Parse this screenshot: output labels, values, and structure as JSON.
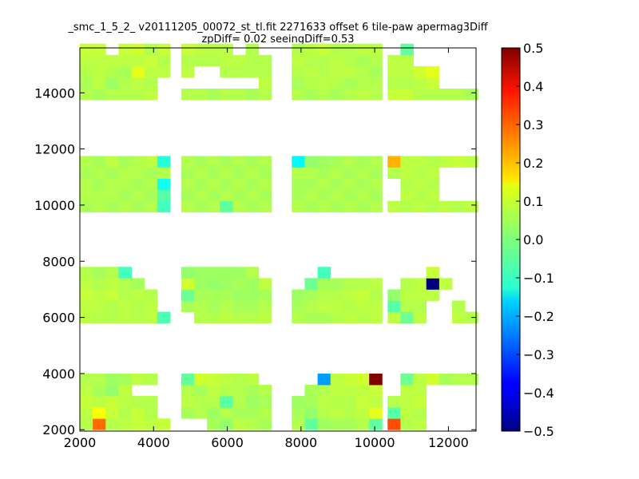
{
  "chart_data": {
    "type": "heatmap",
    "title_line1": "_smc_1_5_2_ v20111205_00072_st_tl.fit 2271633 offset 6 tile-paw apermag3Diff",
    "title_line2": "zpDiff= 0.02 seeingDiff=0.53",
    "xlim": [
      2000,
      12750
    ],
    "ylim": [
      1950,
      15600
    ],
    "grid": false,
    "colormap": "jet",
    "colorbar": {
      "range": [
        -0.5,
        0.5
      ],
      "ticks": [
        0.5,
        0.4,
        0.3,
        0.2,
        0.1,
        0.0,
        -0.1,
        -0.2,
        -0.3,
        -0.4,
        -0.5
      ],
      "tick_labels": [
        "0.5",
        "0.4",
        "0.3",
        "0.2",
        "0.1",
        "0.0",
        "−0.1",
        "−0.2",
        "−0.3",
        "−0.4",
        "−0.5"
      ]
    },
    "x_ticks": [
      2000,
      4000,
      6000,
      8000,
      10000,
      12000
    ],
    "x_tick_labels": [
      "2000",
      "4000",
      "6000",
      "8000",
      "10000",
      "12000"
    ],
    "y_ticks": [
      2000,
      4000,
      6000,
      8000,
      10000,
      12000,
      14000
    ],
    "y_tick_labels": [
      "2000",
      "4000",
      "6000",
      "8000",
      "10000",
      "12000",
      "14000"
    ],
    "cell_width": 350,
    "cell_height": 400,
    "column_x": [
      2000,
      2350,
      2700,
      3050,
      3400,
      3750,
      4100,
      4750,
      5100,
      5450,
      5800,
      6150,
      6500,
      6850,
      7750,
      8100,
      8450,
      8800,
      9150,
      9500,
      9850,
      10350,
      10700,
      11050,
      11400,
      11750,
      12100,
      12450
    ],
    "band_row_y": [
      [
        2000,
        2400,
        2800,
        3200,
        3600
      ],
      [
        5800,
        6200,
        6600,
        7000,
        7400
      ],
      [
        9750,
        10150,
        10550,
        10950,
        11350
      ],
      [
        13750,
        14150,
        14550,
        14950,
        15350
      ]
    ],
    "bands": [
      [
        [
          0.05,
          0.06,
          0.07,
          0.06,
          0.05
        ],
        [
          0.27,
          0.12,
          0.06,
          0.04,
          0.05
        ],
        [
          0.05,
          0.07,
          0.07,
          0.02,
          0.03
        ],
        [
          0.06,
          0.05,
          0.06,
          0.06,
          0.04
        ],
        [
          0.07,
          0.07,
          0.05,
          null,
          0.06
        ],
        [
          0.06,
          0.05,
          0.05,
          null,
          0.05
        ],
        [
          0.07,
          null,
          null,
          null,
          null
        ],
        [
          null,
          0.04,
          0.06,
          0.05,
          -0.03
        ],
        [
          null,
          0.05,
          0.05,
          0.04,
          0.08
        ],
        [
          0.04,
          0.03,
          0.05,
          0.06,
          0.07
        ],
        [
          0.02,
          0.05,
          -0.04,
          0.05,
          0.06
        ],
        [
          0.06,
          0.04,
          0.05,
          0.05,
          0.05
        ],
        [
          0.05,
          0.04,
          0.03,
          0.04,
          0.06
        ],
        [
          0.04,
          0.05,
          0.04,
          0.05,
          null
        ],
        [
          0.05,
          0.04,
          0.03,
          null,
          null
        ],
        [
          -0.03,
          0.02,
          0.04,
          0.04,
          null
        ],
        [
          0.03,
          0.05,
          0.06,
          0.05,
          -0.22
        ],
        [
          0.04,
          0.06,
          0.05,
          0.06,
          0.06
        ],
        [
          0.04,
          0.05,
          0.05,
          0.06,
          0.07
        ],
        [
          0.05,
          0.06,
          0.07,
          0.06,
          0.08
        ],
        [
          -0.03,
          0.1,
          0.06,
          0.07,
          0.5
        ],
        [
          0.3,
          -0.04,
          0.05,
          null,
          null
        ],
        [
          0.05,
          0.06,
          0.06,
          0.06,
          -0.02
        ],
        [
          0.06,
          0.05,
          0.07,
          0.06,
          0.06
        ],
        [
          null,
          null,
          null,
          null,
          0.08
        ],
        [
          null,
          null,
          null,
          null,
          0.04
        ],
        [
          null,
          null,
          null,
          null,
          0.05
        ],
        [
          null,
          null,
          null,
          null,
          0.05
        ]
      ],
      [
        [
          0.06,
          0.06,
          0.07,
          0.06,
          0.05
        ],
        [
          0.05,
          0.06,
          0.06,
          0.05,
          0.04
        ],
        [
          0.05,
          0.05,
          0.07,
          0.06,
          0.05
        ],
        [
          0.06,
          0.06,
          0.05,
          0.05,
          -0.06
        ],
        [
          0.05,
          0.05,
          0.06,
          0.04,
          null
        ],
        [
          0.06,
          0.06,
          0.05,
          null,
          null
        ],
        [
          -0.05,
          null,
          null,
          null,
          null
        ],
        [
          null,
          0.04,
          -0.02,
          0.08,
          0.02
        ],
        [
          0.05,
          0.05,
          0.04,
          0.03,
          0.03
        ],
        [
          0.05,
          0.04,
          0.04,
          0.02,
          0.03
        ],
        [
          0.06,
          0.05,
          0.04,
          0.03,
          0.03
        ],
        [
          0.05,
          0.04,
          0.03,
          0.04,
          0.03
        ],
        [
          0.05,
          0.04,
          0.03,
          0.03,
          0.05
        ],
        [
          0.06,
          0.05,
          0.04,
          0.06,
          null
        ],
        [
          0.05,
          0.04,
          0.03,
          null,
          null
        ],
        [
          0.04,
          0.05,
          0.04,
          -0.02,
          null
        ],
        [
          0.04,
          0.06,
          0.05,
          0.04,
          -0.06
        ],
        [
          0.05,
          0.06,
          0.05,
          0.04,
          null
        ],
        [
          0.06,
          0.05,
          0.06,
          0.05,
          null
        ],
        [
          0.05,
          0.06,
          0.07,
          0.05,
          null
        ],
        [
          0.06,
          0.06,
          0.05,
          0.06,
          null
        ],
        [
          0.06,
          -0.04,
          0.02,
          null,
          null
        ],
        [
          -0.02,
          0.05,
          0.06,
          0.05,
          null
        ],
        [
          0.06,
          0.05,
          0.06,
          0.06,
          null
        ],
        [
          null,
          null,
          0.06,
          -0.5,
          0.07
        ],
        [
          null,
          null,
          null,
          0.06,
          null
        ],
        [
          0.06,
          0.05,
          null,
          null,
          null
        ],
        [
          0.05,
          null,
          null,
          null,
          null
        ]
      ],
      [
        [
          0.04,
          0.05,
          0.05,
          0.04,
          0.05
        ],
        [
          0.05,
          0.05,
          0.04,
          0.05,
          0.04
        ],
        [
          0.04,
          0.05,
          0.05,
          0.04,
          0.06
        ],
        [
          0.05,
          0.04,
          0.05,
          0.05,
          0.04
        ],
        [
          0.04,
          0.05,
          0.04,
          0.05,
          0.05
        ],
        [
          0.05,
          0.04,
          0.05,
          0.04,
          0.06
        ],
        [
          -0.06,
          -0.04,
          -0.11,
          0.05,
          -0.09
        ],
        [
          0.05,
          0.04,
          0.05,
          0.04,
          0.05
        ],
        [
          0.04,
          0.05,
          0.04,
          0.05,
          0.04
        ],
        [
          0.05,
          0.04,
          0.05,
          0.04,
          0.05
        ],
        [
          -0.03,
          0.05,
          0.04,
          0.05,
          0.04
        ],
        [
          0.05,
          0.04,
          0.05,
          0.04,
          0.05
        ],
        [
          0.04,
          0.05,
          0.04,
          0.05,
          0.04
        ],
        [
          0.05,
          0.04,
          0.05,
          0.04,
          0.05
        ],
        [
          0.05,
          0.04,
          0.04,
          0.05,
          -0.13
        ],
        [
          0.04,
          0.05,
          0.04,
          0.05,
          0.02
        ],
        [
          0.05,
          0.04,
          0.05,
          0.04,
          0.03
        ],
        [
          0.04,
          0.05,
          0.04,
          0.05,
          0.04
        ],
        [
          0.05,
          0.04,
          0.05,
          0.04,
          0.05
        ],
        [
          0.04,
          0.05,
          0.04,
          0.05,
          0.04
        ],
        [
          0.05,
          0.04,
          0.05,
          0.04,
          0.05
        ],
        [
          0.06,
          null,
          null,
          0.05,
          0.2
        ],
        [
          0.05,
          0.06,
          0.05,
          0.06,
          0.06
        ],
        [
          0.06,
          0.05,
          0.06,
          0.05,
          0.06
        ],
        [
          0.05,
          0.06,
          0.05,
          0.06,
          0.05
        ],
        [
          0.06,
          null,
          null,
          null,
          0.06
        ],
        [
          0.05,
          null,
          null,
          null,
          0.07
        ],
        [
          0.06,
          null,
          null,
          null,
          0.06
        ]
      ],
      [
        [
          0.05,
          0.04,
          0.05,
          0.06,
          0.07
        ],
        [
          0.04,
          0.06,
          0.06,
          0.06,
          0.07
        ],
        [
          0.05,
          0.03,
          0.05,
          0.06,
          null
        ],
        [
          0.05,
          0.05,
          0.04,
          0.06,
          0.07
        ],
        [
          0.05,
          0.06,
          0.1,
          0.06,
          0.08
        ],
        [
          0.06,
          0.05,
          0.06,
          0.07,
          0.05
        ],
        [
          null,
          null,
          0.06,
          0.05,
          0.07
        ],
        [
          0.05,
          null,
          0.06,
          0.05,
          0.07
        ],
        [
          0.05,
          null,
          null,
          0.05,
          0.06
        ],
        [
          0.04,
          null,
          null,
          0.05,
          0.06
        ],
        [
          0.05,
          null,
          0.05,
          0.06,
          0.06
        ],
        [
          0.05,
          null,
          0.05,
          0.06,
          null
        ],
        [
          0.04,
          null,
          0.05,
          0.05,
          0.05
        ],
        [
          0.05,
          0.06,
          0.05,
          0.05,
          null
        ],
        [
          0.05,
          0.04,
          0.05,
          0.06,
          0.05
        ],
        [
          0.04,
          0.05,
          0.06,
          0.05,
          0.06
        ],
        [
          0.05,
          0.06,
          0.05,
          0.05,
          0.07
        ],
        [
          0.04,
          0.05,
          0.06,
          0.06,
          0.05
        ],
        [
          0.05,
          0.04,
          0.06,
          0.05,
          0.05
        ],
        [
          0.06,
          0.05,
          0.05,
          0.04,
          0.06
        ],
        [
          0.05,
          0.05,
          0.04,
          0.05,
          0.06
        ],
        [
          0.07,
          0.05,
          0.06,
          0.06,
          null
        ],
        [
          0.07,
          0.05,
          0.06,
          0.06,
          -0.03
        ],
        [
          0.05,
          0.06,
          0.08,
          null,
          null
        ],
        [
          0.05,
          0.07,
          0.1,
          null,
          null
        ],
        [
          0.05,
          null,
          null,
          null,
          null
        ],
        [
          0.05,
          null,
          null,
          null,
          null
        ],
        [
          0.04,
          null,
          null,
          null,
          null
        ]
      ]
    ]
  }
}
